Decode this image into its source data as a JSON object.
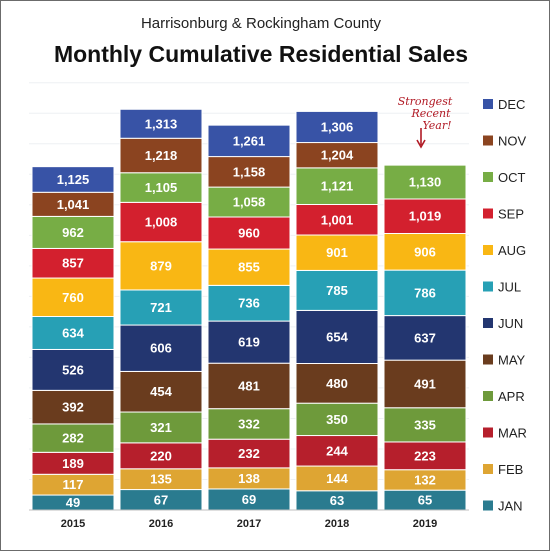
{
  "chart_data": {
    "type": "bar",
    "stacked": true,
    "title": "Monthly Cumulative Residential Sales",
    "subtitle": "Harrisonburg & Rockingham County",
    "categories": [
      "2015",
      "2016",
      "2017",
      "2018",
      "2019"
    ],
    "series": [
      {
        "name": "JAN",
        "color": "#2a7b8f",
        "values": [
          49,
          67,
          69,
          63,
          65
        ]
      },
      {
        "name": "FEB",
        "color": "#dea533",
        "values": [
          117,
          135,
          138,
          144,
          132
        ]
      },
      {
        "name": "MAR",
        "color": "#b61f2c",
        "values": [
          189,
          220,
          232,
          244,
          223
        ]
      },
      {
        "name": "APR",
        "color": "#6e9a3b",
        "values": [
          282,
          321,
          332,
          350,
          335
        ]
      },
      {
        "name": "MAY",
        "color": "#6a3c1e",
        "values": [
          392,
          454,
          481,
          480,
          491
        ]
      },
      {
        "name": "JUN",
        "color": "#233670",
        "values": [
          526,
          606,
          619,
          654,
          637
        ]
      },
      {
        "name": "JUL",
        "color": "#27a0b5",
        "values": [
          634,
          721,
          736,
          785,
          786
        ]
      },
      {
        "name": "AUG",
        "color": "#f9b714",
        "values": [
          760,
          879,
          855,
          901,
          906
        ]
      },
      {
        "name": "SEP",
        "color": "#d3202e",
        "values": [
          857,
          1008,
          960,
          1001,
          1019
        ]
      },
      {
        "name": "OCT",
        "color": "#77ad45",
        "values": [
          962,
          1105,
          1058,
          1121,
          1130
        ]
      },
      {
        "name": "NOV",
        "color": "#8b4420",
        "values": [
          1041,
          1218,
          1158,
          1204,
          null
        ]
      },
      {
        "name": "DEC",
        "color": "#3853a6",
        "values": [
          1125,
          1313,
          1261,
          1306,
          null
        ]
      }
    ],
    "value_labels": [
      [
        "49",
        "67",
        "69",
        "63",
        "65"
      ],
      [
        "117",
        "135",
        "138",
        "144",
        "132"
      ],
      [
        "189",
        "220",
        "232",
        "244",
        "223"
      ],
      [
        "282",
        "321",
        "332",
        "350",
        "335"
      ],
      [
        "392",
        "454",
        "481",
        "480",
        "491"
      ],
      [
        "526",
        "606",
        "619",
        "654",
        "637"
      ],
      [
        "634",
        "721",
        "736",
        "785",
        "786"
      ],
      [
        "760",
        "879",
        "855",
        "901",
        "906"
      ],
      [
        "857",
        "1,008",
        "960",
        "1,001",
        "1,019"
      ],
      [
        "962",
        "1,105",
        "1,058",
        "1,121",
        "1,130"
      ],
      [
        "1,041",
        "1,218",
        "1,158",
        "1,204",
        ""
      ],
      [
        "1,125",
        "1,313",
        "1,261",
        "1,306",
        ""
      ]
    ],
    "legend_position": "right",
    "legend_order": [
      "DEC",
      "NOV",
      "OCT",
      "SEP",
      "AUG",
      "JUL",
      "JUN",
      "MAY",
      "APR",
      "MAR",
      "FEB",
      "JAN"
    ],
    "annotation": {
      "lines": [
        "Strongest",
        "Recent",
        "Year!"
      ],
      "target": "2019"
    },
    "grid": true
  }
}
